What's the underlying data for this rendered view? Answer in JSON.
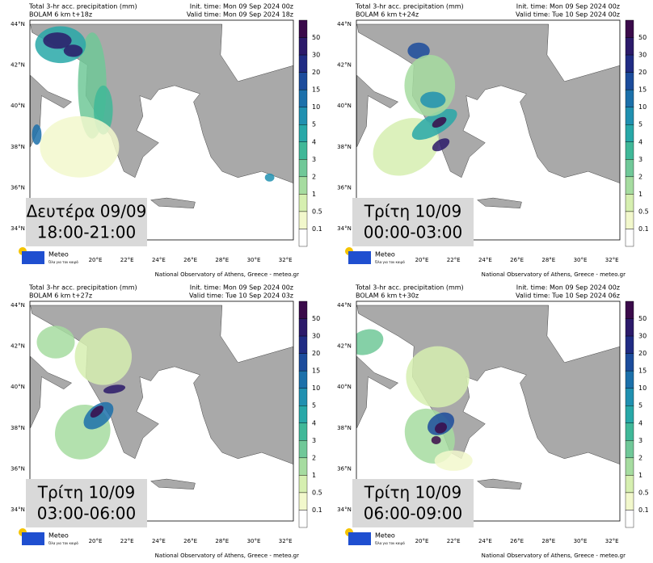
{
  "title": "Total 3-hr acc. precipitation (mm)",
  "panels": [
    {
      "run": "BOLAM 6 km t+18z",
      "init": "Init. time: Mon 09 Sep 2024 00z",
      "valid": "Valid time: Mon 09 Sep 2024 18z",
      "day": "Δευτέρα 09/09",
      "hours": "18:00-21:00"
    },
    {
      "run": "BOLAM 6 km t+24z",
      "init": "Init. time: Mon 09 Sep 2024 00z",
      "valid": "Valid time: Tue 10 Sep 2024 00z",
      "day": "Τρίτη 10/09",
      "hours": "00:00-03:00"
    },
    {
      "run": "BOLAM 6 km t+27z",
      "init": "Init. time: Mon 09 Sep 2024 00z",
      "valid": "Valid time: Tue 10 Sep 2024 03z",
      "day": "Τρίτη 10/09",
      "hours": "03:00-06:00"
    },
    {
      "run": "BOLAM 6 km t+30z",
      "init": "Init. time: Mon 09 Sep 2024 00z",
      "valid": "Valid time: Tue 10 Sep 2024 06z",
      "day": "Τρίτη 10/09",
      "hours": "06:00-09:00"
    }
  ],
  "lat_labels": [
    "44°N",
    "42°N",
    "40°N",
    "38°N",
    "36°N",
    "34°N"
  ],
  "lon_labels": [
    "20°E",
    "22°E",
    "24°E",
    "26°E",
    "28°E",
    "30°E",
    "32°E"
  ],
  "colorbar_labels": [
    "50",
    "30",
    "20",
    "15",
    "10",
    "5",
    "4",
    "3",
    "2",
    "1",
    "0.5",
    "0.1"
  ],
  "footer": "National Observatory of Athens, Greece - meteo.gr",
  "logo": {
    "name": "Meteo",
    "tagline": "Όλα για τον καιρό"
  }
}
